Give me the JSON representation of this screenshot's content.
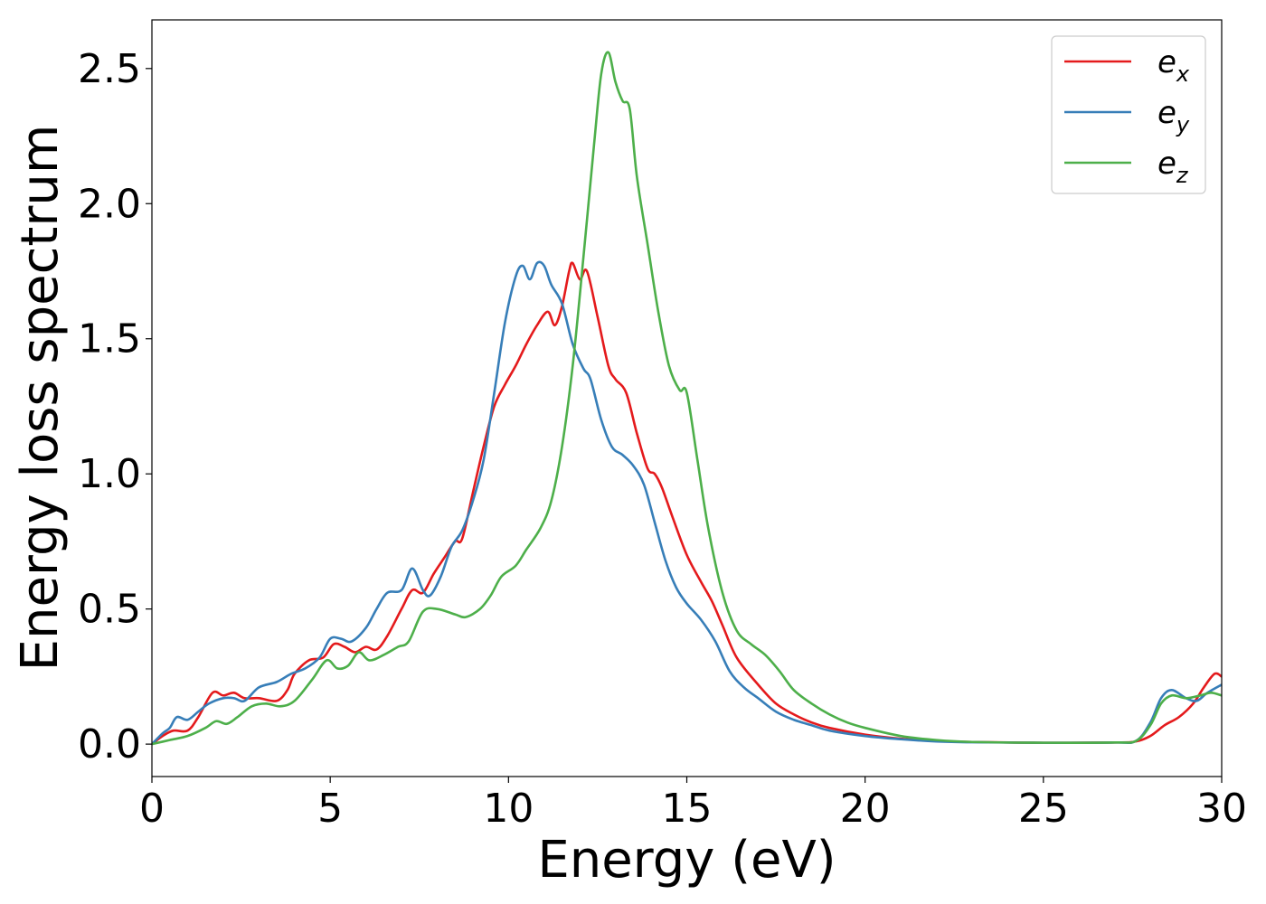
{
  "chart_data": {
    "type": "line",
    "title": "",
    "xlabel": "Energy (eV)",
    "ylabel": "Energy loss spectrum",
    "xlim": [
      0,
      30
    ],
    "ylim": [
      -0.12,
      2.68
    ],
    "xticks": [
      0,
      5,
      10,
      15,
      20,
      25,
      30
    ],
    "xtick_labels": [
      "0",
      "5",
      "10",
      "15",
      "20",
      "25",
      "30"
    ],
    "yticks": [
      0.0,
      0.5,
      1.0,
      1.5,
      2.0,
      2.5
    ],
    "ytick_labels": [
      "0.0",
      "0.5",
      "1.0",
      "1.5",
      "2.0",
      "2.5"
    ],
    "grid": false,
    "legend_position": "top-right",
    "series": [
      {
        "name": "e_x",
        "label_base": "e",
        "label_sub": "x",
        "color": "#e41a1c",
        "points": [
          [
            0,
            0
          ],
          [
            0.3,
            0.03
          ],
          [
            0.6,
            0.05
          ],
          [
            1.0,
            0.05
          ],
          [
            1.3,
            0.1
          ],
          [
            1.7,
            0.19
          ],
          [
            2.0,
            0.18
          ],
          [
            2.3,
            0.19
          ],
          [
            2.6,
            0.17
          ],
          [
            3.0,
            0.17
          ],
          [
            3.5,
            0.16
          ],
          [
            3.8,
            0.2
          ],
          [
            4.0,
            0.26
          ],
          [
            4.4,
            0.31
          ],
          [
            4.8,
            0.32
          ],
          [
            5.1,
            0.37
          ],
          [
            5.4,
            0.36
          ],
          [
            5.7,
            0.34
          ],
          [
            6.0,
            0.36
          ],
          [
            6.3,
            0.35
          ],
          [
            6.6,
            0.4
          ],
          [
            7.0,
            0.5
          ],
          [
            7.3,
            0.57
          ],
          [
            7.6,
            0.56
          ],
          [
            7.9,
            0.63
          ],
          [
            8.2,
            0.69
          ],
          [
            8.5,
            0.75
          ],
          [
            8.7,
            0.76
          ],
          [
            9.0,
            0.93
          ],
          [
            9.3,
            1.1
          ],
          [
            9.6,
            1.25
          ],
          [
            9.9,
            1.33
          ],
          [
            10.2,
            1.4
          ],
          [
            10.5,
            1.48
          ],
          [
            10.8,
            1.55
          ],
          [
            11.1,
            1.6
          ],
          [
            11.3,
            1.55
          ],
          [
            11.5,
            1.62
          ],
          [
            11.7,
            1.75
          ],
          [
            11.8,
            1.78
          ],
          [
            12.0,
            1.72
          ],
          [
            12.2,
            1.75
          ],
          [
            12.5,
            1.58
          ],
          [
            12.8,
            1.4
          ],
          [
            13.0,
            1.35
          ],
          [
            13.3,
            1.3
          ],
          [
            13.6,
            1.15
          ],
          [
            13.9,
            1.02
          ],
          [
            14.1,
            1.0
          ],
          [
            14.3,
            0.95
          ],
          [
            14.6,
            0.84
          ],
          [
            15.0,
            0.7
          ],
          [
            15.4,
            0.6
          ],
          [
            15.7,
            0.53
          ],
          [
            16.0,
            0.44
          ],
          [
            16.4,
            0.32
          ],
          [
            17.0,
            0.22
          ],
          [
            17.5,
            0.15
          ],
          [
            18.0,
            0.11
          ],
          [
            18.5,
            0.08
          ],
          [
            19.0,
            0.06
          ],
          [
            20.0,
            0.035
          ],
          [
            21.0,
            0.02
          ],
          [
            22.0,
            0.012
          ],
          [
            23.0,
            0.008
          ],
          [
            25.0,
            0.005
          ],
          [
            27.0,
            0.006
          ],
          [
            27.6,
            0.01
          ],
          [
            28.0,
            0.03
          ],
          [
            28.4,
            0.07
          ],
          [
            28.8,
            0.1
          ],
          [
            29.2,
            0.15
          ],
          [
            29.5,
            0.21
          ],
          [
            29.8,
            0.26
          ],
          [
            30.0,
            0.25
          ]
        ]
      },
      {
        "name": "e_y",
        "label_base": "e",
        "label_sub": "y",
        "color": "#377eb8",
        "points": [
          [
            0,
            0
          ],
          [
            0.3,
            0.04
          ],
          [
            0.5,
            0.06
          ],
          [
            0.7,
            0.1
          ],
          [
            1.0,
            0.09
          ],
          [
            1.3,
            0.12
          ],
          [
            1.6,
            0.15
          ],
          [
            2.0,
            0.17
          ],
          [
            2.3,
            0.17
          ],
          [
            2.6,
            0.16
          ],
          [
            3.0,
            0.21
          ],
          [
            3.5,
            0.23
          ],
          [
            3.9,
            0.26
          ],
          [
            4.3,
            0.28
          ],
          [
            4.7,
            0.32
          ],
          [
            5.0,
            0.39
          ],
          [
            5.3,
            0.39
          ],
          [
            5.6,
            0.38
          ],
          [
            6.0,
            0.43
          ],
          [
            6.3,
            0.5
          ],
          [
            6.6,
            0.56
          ],
          [
            7.0,
            0.57
          ],
          [
            7.3,
            0.65
          ],
          [
            7.6,
            0.57
          ],
          [
            7.8,
            0.55
          ],
          [
            8.1,
            0.62
          ],
          [
            8.4,
            0.73
          ],
          [
            8.7,
            0.79
          ],
          [
            9.0,
            0.9
          ],
          [
            9.3,
            1.05
          ],
          [
            9.6,
            1.3
          ],
          [
            9.9,
            1.56
          ],
          [
            10.2,
            1.73
          ],
          [
            10.4,
            1.77
          ],
          [
            10.6,
            1.72
          ],
          [
            10.8,
            1.78
          ],
          [
            11.0,
            1.77
          ],
          [
            11.2,
            1.7
          ],
          [
            11.5,
            1.63
          ],
          [
            11.8,
            1.48
          ],
          [
            12.1,
            1.39
          ],
          [
            12.3,
            1.35
          ],
          [
            12.6,
            1.2
          ],
          [
            12.9,
            1.1
          ],
          [
            13.2,
            1.07
          ],
          [
            13.5,
            1.03
          ],
          [
            13.8,
            0.96
          ],
          [
            14.1,
            0.82
          ],
          [
            14.4,
            0.68
          ],
          [
            14.7,
            0.58
          ],
          [
            15.0,
            0.52
          ],
          [
            15.4,
            0.46
          ],
          [
            15.8,
            0.38
          ],
          [
            16.2,
            0.27
          ],
          [
            16.6,
            0.21
          ],
          [
            17.0,
            0.17
          ],
          [
            17.5,
            0.12
          ],
          [
            18.0,
            0.09
          ],
          [
            18.5,
            0.07
          ],
          [
            19.0,
            0.05
          ],
          [
            20.0,
            0.03
          ],
          [
            21.0,
            0.018
          ],
          [
            22.0,
            0.01
          ],
          [
            23.0,
            0.007
          ],
          [
            25.0,
            0.005
          ],
          [
            27.0,
            0.006
          ],
          [
            27.6,
            0.012
          ],
          [
            28.0,
            0.08
          ],
          [
            28.3,
            0.17
          ],
          [
            28.6,
            0.2
          ],
          [
            29.0,
            0.17
          ],
          [
            29.3,
            0.16
          ],
          [
            29.6,
            0.19
          ],
          [
            30.0,
            0.22
          ]
        ]
      },
      {
        "name": "e_z",
        "label_base": "e",
        "label_sub": "z",
        "color": "#4daf4a",
        "points": [
          [
            0,
            0
          ],
          [
            0.5,
            0.015
          ],
          [
            1.0,
            0.03
          ],
          [
            1.5,
            0.06
          ],
          [
            1.8,
            0.085
          ],
          [
            2.1,
            0.075
          ],
          [
            2.4,
            0.1
          ],
          [
            2.8,
            0.14
          ],
          [
            3.2,
            0.15
          ],
          [
            3.6,
            0.14
          ],
          [
            4.0,
            0.16
          ],
          [
            4.5,
            0.24
          ],
          [
            4.9,
            0.31
          ],
          [
            5.2,
            0.28
          ],
          [
            5.5,
            0.29
          ],
          [
            5.8,
            0.34
          ],
          [
            6.1,
            0.31
          ],
          [
            6.5,
            0.33
          ],
          [
            6.9,
            0.36
          ],
          [
            7.2,
            0.38
          ],
          [
            7.6,
            0.49
          ],
          [
            8.0,
            0.5
          ],
          [
            8.5,
            0.48
          ],
          [
            8.8,
            0.47
          ],
          [
            9.2,
            0.5
          ],
          [
            9.5,
            0.55
          ],
          [
            9.8,
            0.62
          ],
          [
            10.2,
            0.66
          ],
          [
            10.5,
            0.72
          ],
          [
            10.9,
            0.8
          ],
          [
            11.2,
            0.9
          ],
          [
            11.5,
            1.1
          ],
          [
            11.8,
            1.4
          ],
          [
            12.1,
            1.8
          ],
          [
            12.4,
            2.22
          ],
          [
            12.6,
            2.48
          ],
          [
            12.8,
            2.56
          ],
          [
            13.0,
            2.45
          ],
          [
            13.2,
            2.38
          ],
          [
            13.4,
            2.35
          ],
          [
            13.6,
            2.1
          ],
          [
            13.9,
            1.85
          ],
          [
            14.2,
            1.6
          ],
          [
            14.5,
            1.4
          ],
          [
            14.8,
            1.31
          ],
          [
            15.0,
            1.3
          ],
          [
            15.3,
            1.05
          ],
          [
            15.6,
            0.8
          ],
          [
            16.0,
            0.56
          ],
          [
            16.4,
            0.42
          ],
          [
            16.8,
            0.37
          ],
          [
            17.2,
            0.33
          ],
          [
            17.6,
            0.27
          ],
          [
            18.0,
            0.2
          ],
          [
            18.5,
            0.15
          ],
          [
            19.0,
            0.11
          ],
          [
            19.5,
            0.08
          ],
          [
            20.0,
            0.06
          ],
          [
            21.0,
            0.03
          ],
          [
            22.0,
            0.015
          ],
          [
            23.0,
            0.008
          ],
          [
            25.0,
            0.005
          ],
          [
            27.0,
            0.006
          ],
          [
            27.6,
            0.012
          ],
          [
            28.0,
            0.07
          ],
          [
            28.3,
            0.15
          ],
          [
            28.6,
            0.18
          ],
          [
            29.0,
            0.17
          ],
          [
            29.4,
            0.18
          ],
          [
            29.7,
            0.19
          ],
          [
            30.0,
            0.18
          ]
        ]
      }
    ]
  }
}
